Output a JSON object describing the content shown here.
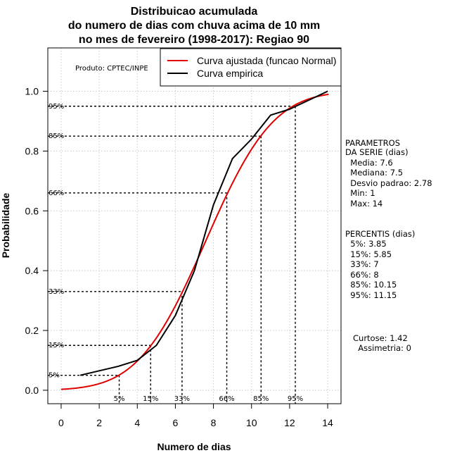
{
  "chart_data": {
    "type": "line",
    "title": [
      "Distribuicao acumulada",
      "do numero de dias com chuva acima de 10 mm",
      "no mes de fevereiro (1998-2017): Regiao 90"
    ],
    "xlabel": "Numero de dias",
    "ylabel": "Probabilidade",
    "xlim": [
      -0.7,
      14.7
    ],
    "ylim": [
      -0.045,
      1.145
    ],
    "x_ticks": [
      0,
      2,
      4,
      6,
      8,
      10,
      12,
      14
    ],
    "y_ticks": [
      0.0,
      0.2,
      0.4,
      0.6,
      0.8,
      1.0
    ],
    "y_tick_labels": [
      "0.0",
      "0.2",
      "0.4",
      "0.6",
      "0.8",
      "1.0"
    ],
    "x_tick_labels": [
      "0",
      "2",
      "4",
      "6",
      "8",
      "10",
      "12",
      "14"
    ],
    "grid": true,
    "producer_label": "Produto: CPTEC/INPE",
    "legend": {
      "position": "top-right",
      "entries": [
        {
          "label": "Curva ajustada (funcao Normal)",
          "color": "#e00000"
        },
        {
          "label": "Curva empirica",
          "color": "#000000"
        }
      ]
    },
    "series": [
      {
        "name": "Curva ajustada (funcao Normal)",
        "color": "#e00000",
        "kind": "normal_cdf",
        "mean": 7.6,
        "sd": 2.78,
        "x_range": [
          0,
          14.05
        ]
      },
      {
        "name": "Curva empirica",
        "color": "#000000",
        "x": [
          1,
          2,
          3,
          4,
          5,
          6,
          7,
          8,
          9,
          10,
          11,
          12,
          13,
          14
        ],
        "y": [
          0.05,
          0.065,
          0.08,
          0.1,
          0.15,
          0.25,
          0.4,
          0.62,
          0.775,
          0.84,
          0.92,
          0.94,
          0.97,
          1.0
        ]
      }
    ],
    "percentile_markers": [
      {
        "label": "5%",
        "prob": 0.05,
        "x": 3.05
      },
      {
        "label": "15%",
        "prob": 0.15,
        "x": 4.7
      },
      {
        "label": "33%",
        "prob": 0.33,
        "x": 6.35
      },
      {
        "label": "66%",
        "prob": 0.66,
        "x": 8.7
      },
      {
        "label": "85%",
        "prob": 0.85,
        "x": 10.5
      },
      {
        "label": "95%",
        "prob": 0.95,
        "x": 12.3
      }
    ],
    "annotations": {
      "parametros": [
        "PARAMETROS",
        "DA SERIE (dias)",
        "  Media: 7.6",
        "  Mediana: 7.5",
        "  Desvio padrao: 2.78",
        "  Min: 1",
        "  Max: 14"
      ],
      "percentis": [
        "PERCENTIS (dias)",
        "  5%: 3.85",
        "  15%: 5.85",
        "  33%: 7",
        "  66%: 8",
        "  85%: 10.15",
        "  95%: 11.15"
      ],
      "shape": [
        "Curtose: 1.42",
        "  Assimetria: 0"
      ]
    }
  }
}
